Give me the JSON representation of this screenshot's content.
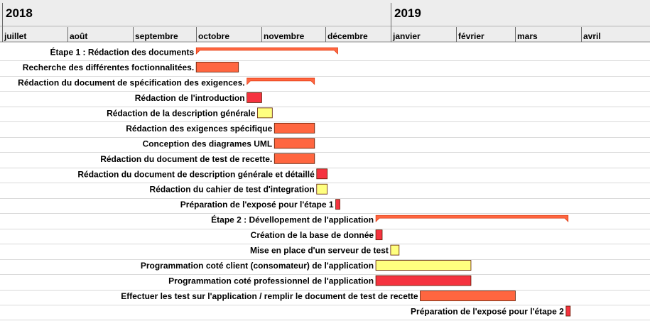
{
  "chart_data": {
    "type": "gantt",
    "years": [
      "2018",
      "2019"
    ],
    "months": [
      {
        "label": "juillet",
        "start": "2018-07-01"
      },
      {
        "label": "août",
        "start": "2018-08-01"
      },
      {
        "label": "septembre",
        "start": "2018-09-01"
      },
      {
        "label": "octobre",
        "start": "2018-10-01"
      },
      {
        "label": "novembre",
        "start": "2018-11-01"
      },
      {
        "label": "décembre",
        "start": "2018-12-01"
      },
      {
        "label": "janvier",
        "start": "2019-01-01"
      },
      {
        "label": "février",
        "start": "2019-02-01"
      },
      {
        "label": "mars",
        "start": "2019-03-01"
      },
      {
        "label": "avril",
        "start": "2019-04-01"
      }
    ],
    "range": [
      "2018-07-01",
      "2019-05-01"
    ],
    "colors": {
      "summary": "#ff6640",
      "orange": "#ff6640",
      "red": "#f5333f",
      "yellow": "#ffff7f",
      "border": "#d62a00",
      "grid": "#d9d9d9",
      "header": "#ededed"
    },
    "tasks": [
      {
        "label": "Étape 1 : Rédaction des documents",
        "start": "2018-10-01",
        "end": "2018-12-07",
        "style": "summary"
      },
      {
        "label": "Recherche des différentes foctionnalitées.",
        "start": "2018-10-01",
        "end": "2018-10-21",
        "style": "orange"
      },
      {
        "label": "Rédaction du document de spécification des exigences.",
        "start": "2018-10-25",
        "end": "2018-11-26",
        "style": "summary"
      },
      {
        "label": "Rédaction de l'introduction",
        "start": "2018-10-25",
        "end": "2018-11-01",
        "style": "red"
      },
      {
        "label": "Rédaction de la description générale",
        "start": "2018-10-30",
        "end": "2018-11-06",
        "style": "yellow"
      },
      {
        "label": "Rédaction des exigences spécifique",
        "start": "2018-11-07",
        "end": "2018-11-26",
        "style": "orange"
      },
      {
        "label": "Conception des diagrames UML",
        "start": "2018-11-07",
        "end": "2018-11-26",
        "style": "orange"
      },
      {
        "label": "Rédaction du document de test de recette.",
        "start": "2018-11-07",
        "end": "2018-11-26",
        "style": "orange"
      },
      {
        "label": "Rédaction du document de description générale et détaillé",
        "start": "2018-11-27",
        "end": "2018-12-02",
        "style": "red"
      },
      {
        "label": "Rédaction du cahier de test d'integration",
        "start": "2018-11-27",
        "end": "2018-12-02",
        "style": "yellow"
      },
      {
        "label": "Préparation de l'exposé pour l'étape 1",
        "start": "2018-12-06",
        "end": "2018-12-08",
        "style": "red"
      },
      {
        "label": "Étape 2 : Dévellopement de l'application",
        "start": "2018-12-25",
        "end": "2019-03-26",
        "style": "summary"
      },
      {
        "label": "Création de la base de donnée",
        "start": "2018-12-25",
        "end": "2018-12-28",
        "style": "red"
      },
      {
        "label": "Mise en place d'un serveur de test",
        "start": "2019-01-01",
        "end": "2019-01-05",
        "style": "yellow"
      },
      {
        "label": "Programmation coté client (consomateur) de l'application",
        "start": "2018-12-25",
        "end": "2019-02-08",
        "style": "yellow"
      },
      {
        "label": "Programmation coté professionnel de l'application",
        "start": "2018-12-25",
        "end": "2019-02-08",
        "style": "red"
      },
      {
        "label": "Effectuer les test sur l'application / remplir le document de test de recette",
        "start": "2019-01-15",
        "end": "2019-03-01",
        "style": "orange"
      },
      {
        "label": "Préparation de l'exposé pour l'étape 2",
        "start": "2019-03-25",
        "end": "2019-03-27",
        "style": "red"
      }
    ]
  }
}
